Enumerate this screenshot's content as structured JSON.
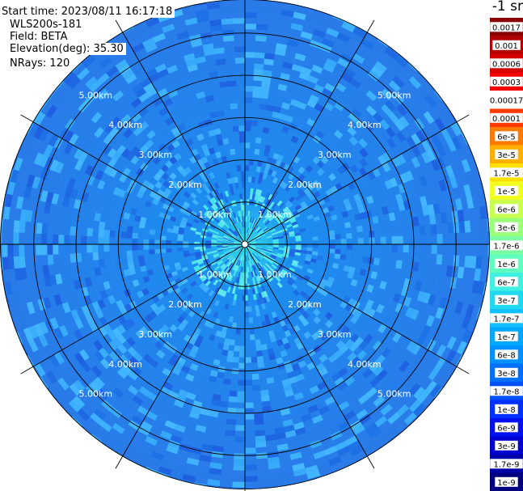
{
  "header": {
    "start_time": "Start time: 2023/08/11 16:17:18",
    "instrument": "WLS200s-181",
    "field": "Field: BETA",
    "elevation": "Elevation(deg): 35.30",
    "nrays": "NRays: 120"
  },
  "colorbar": {
    "unit_title": "-1 sr",
    "labels": [
      "0.0017",
      "0.001",
      "0.0006",
      "0.0003",
      "0.00017",
      "0.0001",
      "6e-5",
      "3e-5",
      "1.7e-5",
      "1e-5",
      "6e-6",
      "3e-6",
      "1.7e-6",
      "1e-6",
      "6e-7",
      "3e-7",
      "1.7e-7",
      "1e-7",
      "6e-8",
      "3e-8",
      "1.7e-8",
      "1e-8",
      "6e-9",
      "3e-9",
      "1.7e-9",
      "1e-9"
    ],
    "colors": [
      "#8b0000",
      "#b40000",
      "#d40000",
      "#f40000",
      "#ffffff",
      "#ff3a00",
      "#ff7a00",
      "#ffb000",
      "#ffe000",
      "#f0ff20",
      "#c8ff50",
      "#9cff7c",
      "#7cffa0",
      "#60ffc0",
      "#40f0e0",
      "#20d8f0",
      "#10c0ff",
      "#00a8ff",
      "#0090ff",
      "#0070ff",
      "#0050ff",
      "#0030ff",
      "#0010f0",
      "#0000d0",
      "#0000a8",
      "#000080"
    ]
  },
  "chart_data": {
    "type": "heatmap",
    "subtype": "polar-ppi",
    "title": "",
    "n_rays": 120,
    "elevation_deg": 35.3,
    "field": "BETA",
    "range_rings_km": [
      1.0,
      2.0,
      3.0,
      4.0,
      5.0
    ],
    "ring_labels": [
      "1.00km",
      "2.00km",
      "3.00km",
      "4.00km",
      "5.00km"
    ],
    "spokes_deg": [
      0,
      30,
      60,
      90,
      120,
      150,
      180,
      210,
      240,
      270,
      300,
      330
    ],
    "max_range_km": 5.8,
    "value_scale": "log",
    "background_level": "1e-7",
    "near_center_level": "3e-7",
    "colors": {
      "near": "#2de0e8",
      "mid": "#1d8df0",
      "far": "#2a7ae8",
      "speckle_light": "#45b8ff",
      "speckle_dark": "#1f5fe0",
      "grid": "#000000",
      "ring_label": "#ffffff"
    }
  }
}
